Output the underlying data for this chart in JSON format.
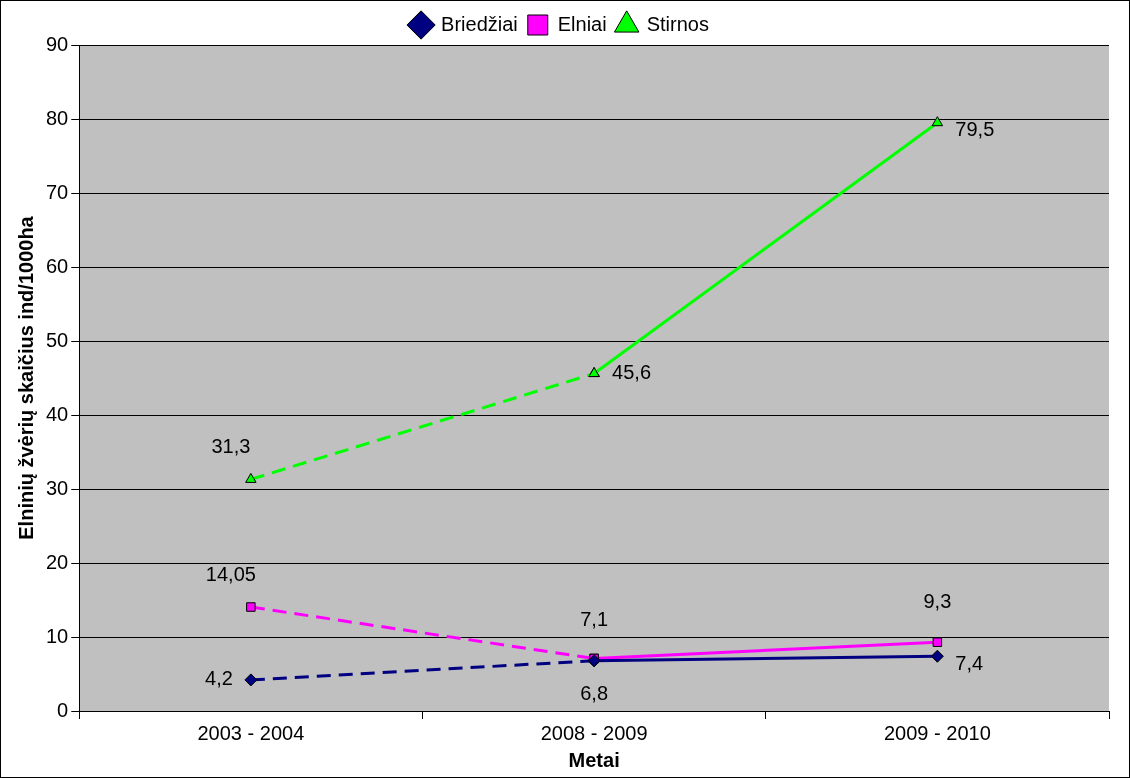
{
  "chart_data": {
    "type": "line",
    "xlabel": "Metai",
    "ylabel": "Elninių žvėrių skaičius ind/1000ha",
    "categories": [
      "2003 - 2004",
      "2008 - 2009",
      "2009 - 2010"
    ],
    "ylim": [
      0,
      90
    ],
    "yticks": [
      0,
      10,
      20,
      30,
      40,
      50,
      60,
      70,
      80,
      90
    ],
    "grid": "y",
    "legend": "top",
    "series": [
      {
        "name": "Briedžiai",
        "color": "#000080",
        "marker": "diamond",
        "line_style": "solid",
        "values": [
          null,
          6.8,
          7.4
        ],
        "value_labels": [
          null,
          "6,8",
          "7,4"
        ]
      },
      {
        "name": "Elniai",
        "color": "#ff00ff",
        "marker": "square",
        "line_style": "solid",
        "values": [
          null,
          7.1,
          9.3
        ],
        "value_labels": [
          null,
          "7,1",
          "9,3"
        ]
      },
      {
        "name": "Stirnos",
        "color": "#00ff00",
        "marker": "triangle",
        "line_style": "solid",
        "values": [
          null,
          45.6,
          79.5
        ],
        "value_labels": [
          null,
          "45,6",
          "79,5"
        ]
      },
      {
        "color": "#000080",
        "marker": "diamond",
        "line_style": "dashed",
        "values": [
          4.2,
          6.8,
          null
        ],
        "value_labels": [
          "4,2",
          null,
          null
        ]
      },
      {
        "color": "#ff00ff",
        "marker": "square",
        "line_style": "dashed",
        "values": [
          14.05,
          7.1,
          null
        ],
        "value_labels": [
          "14,05",
          null,
          null
        ]
      },
      {
        "color": "#00ff00",
        "marker": "triangle",
        "line_style": "dashed",
        "values": [
          31.3,
          45.6,
          null
        ],
        "value_labels": [
          "31,3",
          null,
          null
        ]
      }
    ]
  }
}
